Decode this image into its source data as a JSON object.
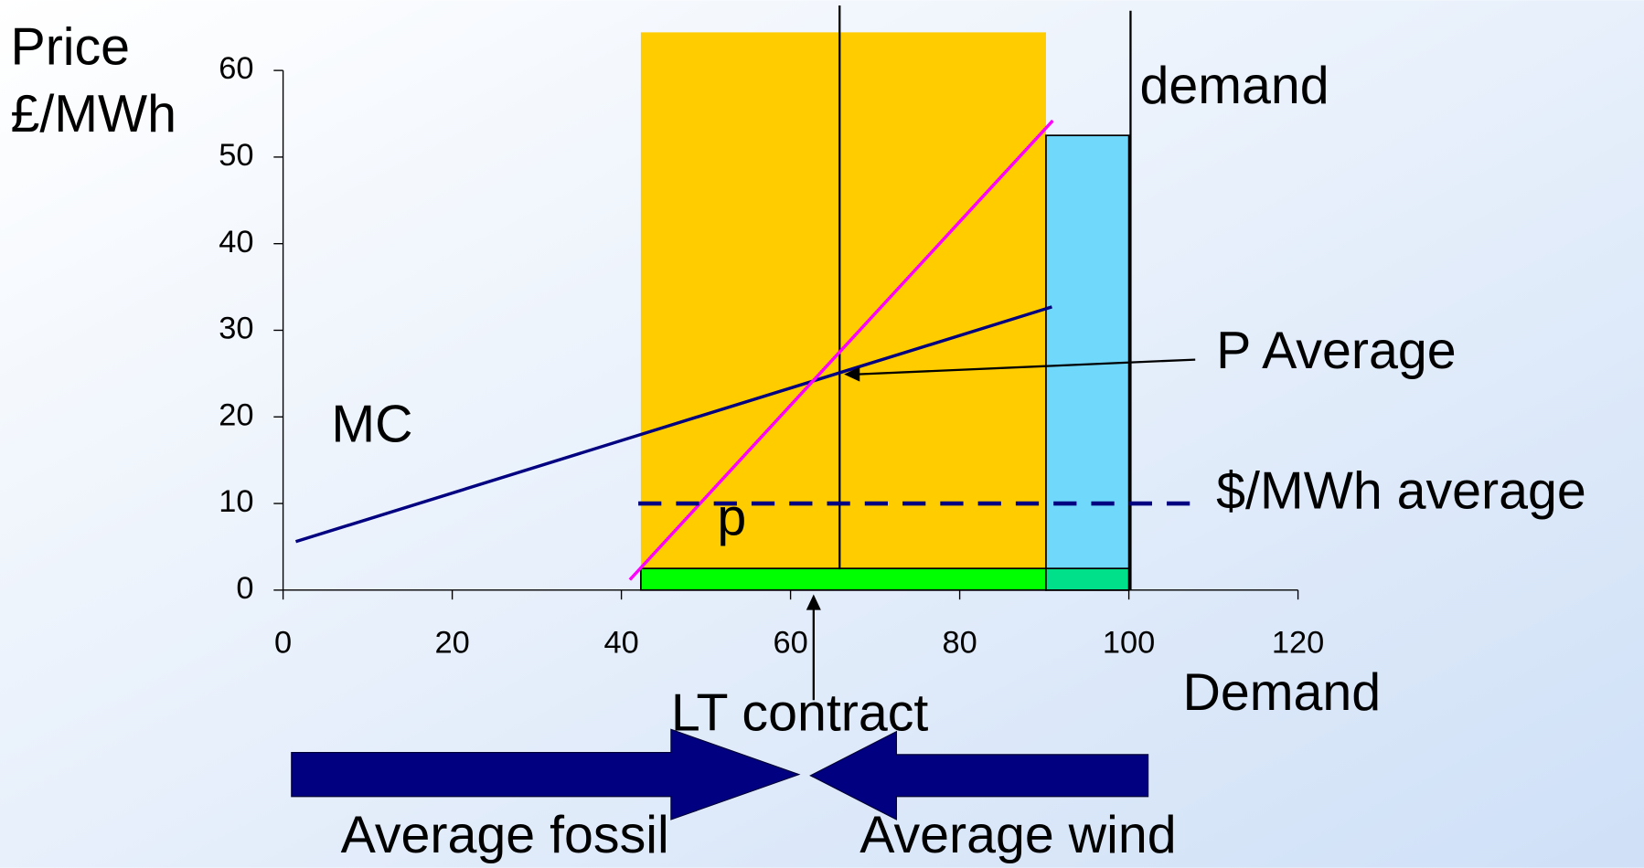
{
  "chart_data": {
    "type": "line",
    "ylabel": [
      "Price",
      "£/MWh"
    ],
    "xlabel": "Demand",
    "xlim": [
      0,
      120
    ],
    "ylim": [
      0,
      60
    ],
    "xticks": [
      0,
      20,
      40,
      60,
      80,
      100,
      120
    ],
    "yticks": [
      0,
      10,
      20,
      30,
      40,
      50,
      60
    ],
    "regions": [
      {
        "color": "#ffcc00",
        "x": [
          42.3,
          90.2
        ],
        "y": [
          0,
          64.4
        ]
      },
      {
        "color": "#70d8fa",
        "x": [
          90.2,
          100
        ],
        "y": [
          0,
          52.5
        ]
      },
      {
        "color": "#00ff00",
        "x": [
          42.3,
          90.2
        ],
        "y": [
          0,
          2.5
        ]
      },
      {
        "color": "#00e08a",
        "x": [
          90.2,
          100
        ],
        "y": [
          0,
          2.5
        ]
      }
    ],
    "series": [
      {
        "name": "MC",
        "color": "#000080",
        "x": [
          1.5,
          90.9
        ],
        "values": [
          5.6,
          32.7
        ]
      },
      {
        "color": "#ff00ff",
        "x": [
          41,
          91
        ],
        "values": [
          1.2,
          54.2
        ]
      },
      {
        "name": "$/MWh average",
        "color": "#000080",
        "dashed": true,
        "x": [
          42,
          107.8
        ],
        "values": [
          10,
          10
        ]
      }
    ],
    "vlines": [
      {
        "x": 65.8,
        "y": [
          2.4,
          67.5
        ]
      },
      {
        "label": "demand",
        "x": 100.2,
        "y": [
          0,
          66.9
        ]
      }
    ],
    "annotations": {
      "p": "p",
      "p_average": "P Average",
      "lt_contract": "LT contract",
      "fossil": "Average fossil",
      "wind": "Average wind"
    }
  }
}
